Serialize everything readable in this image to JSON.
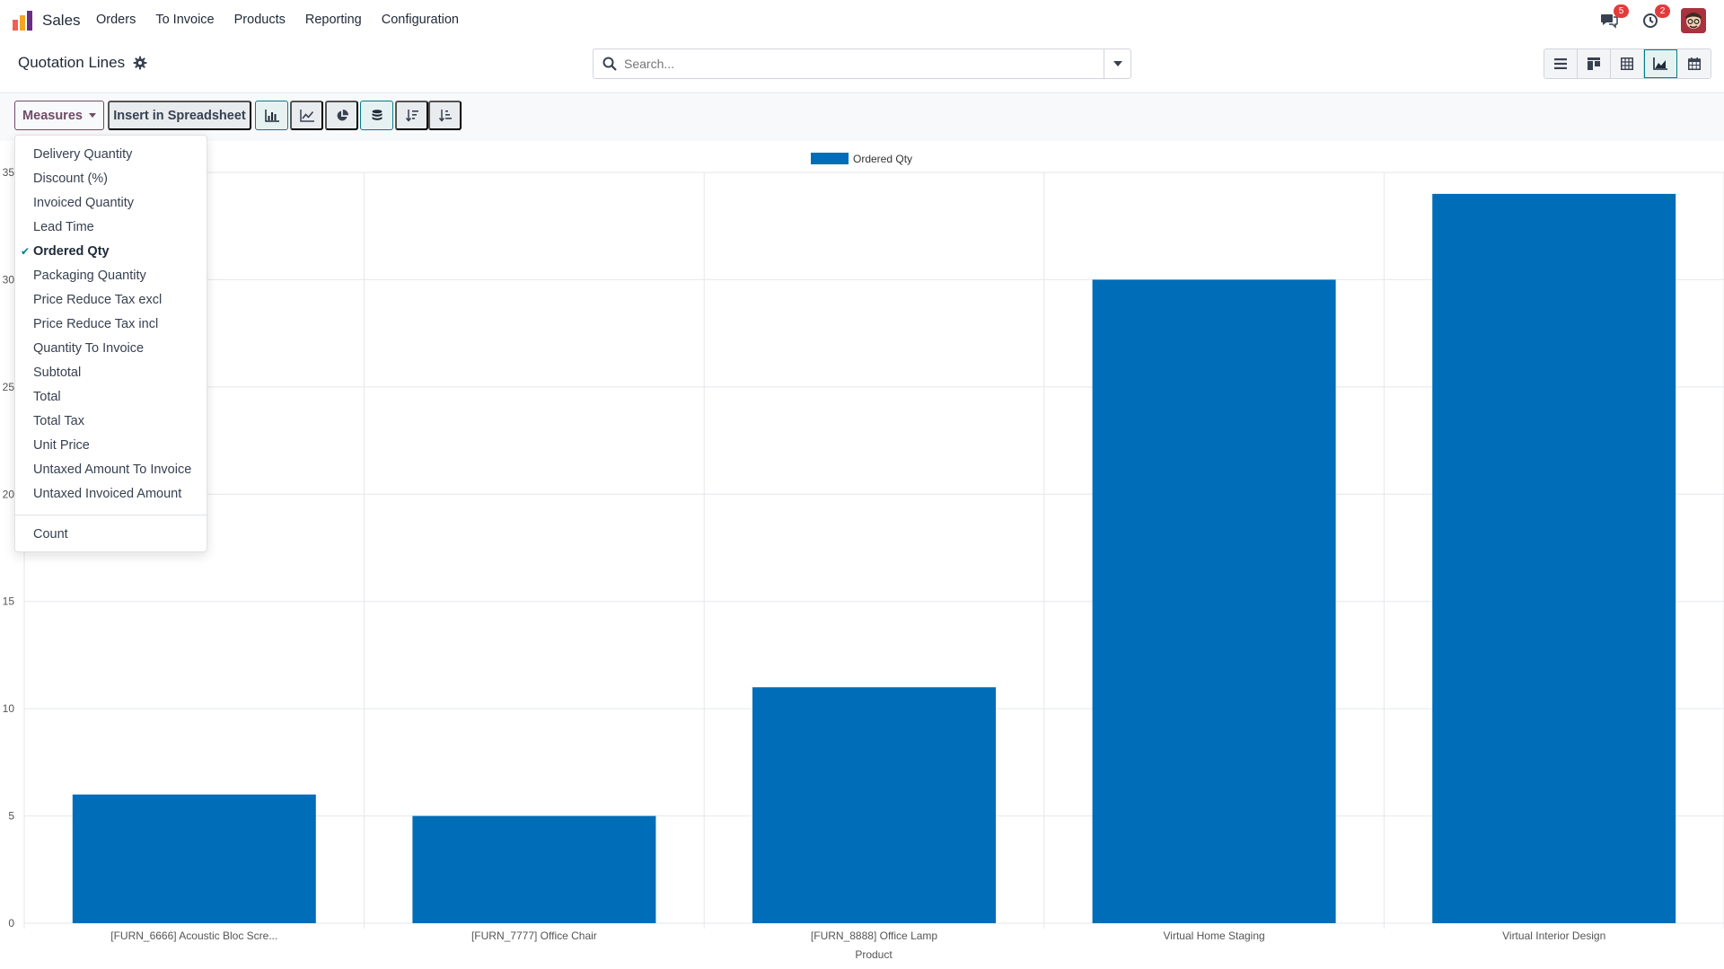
{
  "navbar": {
    "app_name": "Sales",
    "menu": [
      "Orders",
      "To Invoice",
      "Products",
      "Reporting",
      "Configuration"
    ],
    "messages_badge": "5",
    "activities_badge": "2"
  },
  "control_panel": {
    "title": "Quotation Lines",
    "search_placeholder": "Search..."
  },
  "toolbar": {
    "measures_label": "Measures",
    "spreadsheet_label": "Insert in Spreadsheet"
  },
  "measures": {
    "items": [
      {
        "label": "Delivery Quantity",
        "selected": false
      },
      {
        "label": "Discount (%)",
        "selected": false
      },
      {
        "label": "Invoiced Quantity",
        "selected": false
      },
      {
        "label": "Lead Time",
        "selected": false
      },
      {
        "label": "Ordered Qty",
        "selected": true
      },
      {
        "label": "Packaging Quantity",
        "selected": false
      },
      {
        "label": "Price Reduce Tax excl",
        "selected": false
      },
      {
        "label": "Price Reduce Tax incl",
        "selected": false
      },
      {
        "label": "Quantity To Invoice",
        "selected": false
      },
      {
        "label": "Subtotal",
        "selected": false
      },
      {
        "label": "Total",
        "selected": false
      },
      {
        "label": "Total Tax",
        "selected": false
      },
      {
        "label": "Unit Price",
        "selected": false
      },
      {
        "label": "Untaxed Amount To Invoice",
        "selected": false
      },
      {
        "label": "Untaxed Invoiced Amount",
        "selected": false
      }
    ],
    "count_label": "Count"
  },
  "chart_data": {
    "type": "bar",
    "categories": [
      "[FURN_6666] Acoustic Bloc Scre...",
      "[FURN_7777] Office Chair",
      "[FURN_8888] Office Lamp",
      "Virtual Home Staging",
      "Virtual Interior Design"
    ],
    "series": [
      {
        "name": "Ordered Qty",
        "values": [
          6,
          5,
          11,
          30,
          34
        ]
      }
    ],
    "xlabel": "Product",
    "ylabel": "",
    "ylim": [
      0,
      35
    ],
    "yticks": [
      0,
      5,
      10,
      15,
      20,
      25,
      30,
      35
    ],
    "grid": true,
    "legend": "top-center",
    "bar_color": "#006db8"
  }
}
